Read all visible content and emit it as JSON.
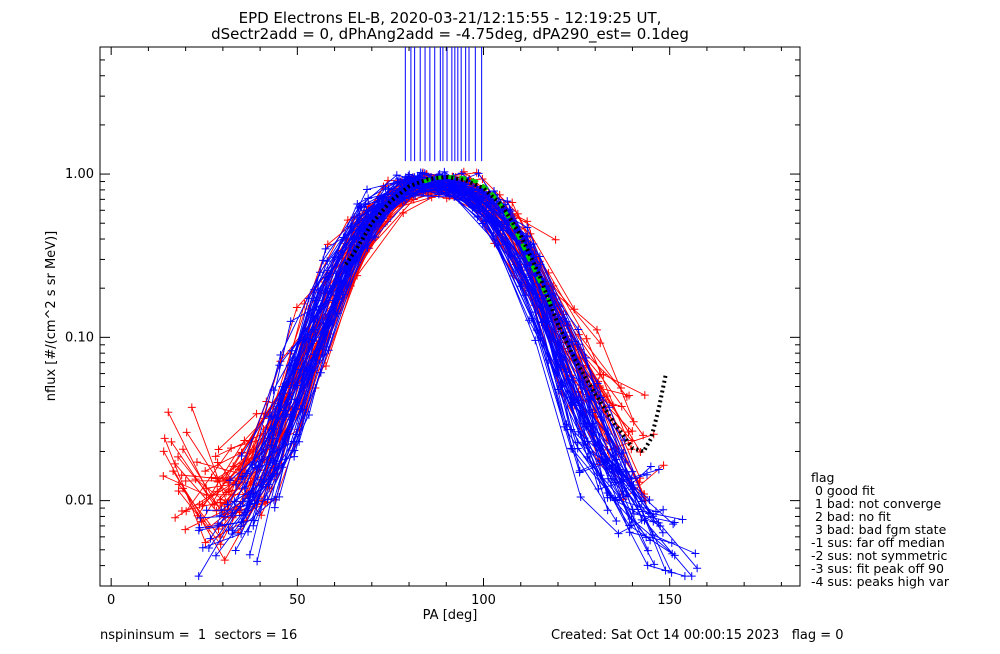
{
  "chart_data": {
    "type": "scatter",
    "title": "EPD Electrons EL-B, 2020-03-21/12:15:55 - 12:19:25 UT,",
    "subtitle": "dSectr2add = 0, dPhAng2add = -4.75deg, dPA290_est=   0.1deg",
    "xlabel": "PA [deg]",
    "ylabel": "nflux [#/(cm^2 s sr MeV)]",
    "xlim": [
      -3,
      185
    ],
    "ylim": [
      0.003,
      6
    ],
    "yscale": "log",
    "xticks": [
      0,
      50,
      100,
      150
    ],
    "xtick_labels": [
      "0",
      "50",
      "100",
      "150"
    ],
    "yticks": [
      0.01,
      0.1,
      1.0
    ],
    "ytick_labels": [
      "0.01",
      "0.10",
      "1.00"
    ],
    "series": [
      {
        "color": "#ff0000",
        "marker": "plus",
        "example_curve": {
          "x": [
            13,
            20,
            30,
            40,
            50,
            60,
            70,
            80,
            90,
            100,
            110,
            120,
            130,
            140,
            150
          ],
          "y": [
            0.025,
            0.012,
            0.009,
            0.015,
            0.05,
            0.2,
            0.55,
            0.85,
            0.9,
            0.75,
            0.4,
            0.12,
            0.045,
            0.02,
            0.012
          ]
        }
      },
      {
        "color": "#0000ff",
        "marker": "plus",
        "example_curve": {
          "x": [
            23,
            30,
            40,
            50,
            60,
            70,
            80,
            90,
            100,
            110,
            120,
            130,
            140,
            150,
            160
          ],
          "y": [
            0.006,
            0.007,
            0.012,
            0.06,
            0.25,
            0.6,
            0.9,
            0.92,
            0.7,
            0.35,
            0.08,
            0.02,
            0.009,
            0.006,
            0.005
          ]
        }
      },
      {
        "color": "#00cc00",
        "style": "dashed",
        "x": [
          84,
          86,
          88,
          90,
          92,
          94,
          96,
          98,
          100,
          102,
          104,
          106,
          108,
          110,
          112,
          114,
          116,
          118
        ],
        "y": [
          0.9,
          0.93,
          0.95,
          0.96,
          0.955,
          0.95,
          0.93,
          0.9,
          0.84,
          0.77,
          0.68,
          0.58,
          0.48,
          0.39,
          0.31,
          0.25,
          0.2,
          0.16
        ]
      },
      {
        "color": "#000000",
        "style": "dotted",
        "x": [
          63,
          66,
          70,
          75,
          80,
          85,
          90,
          95,
          100,
          105,
          110,
          115,
          120,
          125,
          130,
          135,
          140,
          143,
          145,
          147,
          149
        ],
        "y": [
          0.28,
          0.35,
          0.5,
          0.68,
          0.84,
          0.93,
          0.96,
          0.92,
          0.82,
          0.64,
          0.42,
          0.24,
          0.12,
          0.07,
          0.045,
          0.03,
          0.021,
          0.02,
          0.024,
          0.036,
          0.06
        ]
      }
    ],
    "vertical_lines": {
      "color": "#0000ff",
      "x": [
        79,
        80.5,
        81.5,
        83,
        84.3,
        85.6,
        86.9,
        88.4,
        89.1,
        90.2,
        91.5,
        92.3,
        93.1,
        94,
        95.2,
        96.1,
        97.8,
        99.5
      ],
      "from_y": 1.2
    },
    "legend": {
      "position": "bottom-right",
      "items": [
        "flag",
        " 0 good fit",
        " 1 bad: not converge",
        " 2 bad: no fit",
        " 3 bad: bad fgm state",
        "-1 sus: far off median",
        "-2 sus: not symmetric",
        "-3 sus: fit peak off 90",
        "-4 sus: peaks high var"
      ]
    }
  },
  "footer": {
    "left": "nspininsum =  1  sectors = 16",
    "right": "Created: Sat Oct 14 00:00:15 2023   flag = 0"
  }
}
